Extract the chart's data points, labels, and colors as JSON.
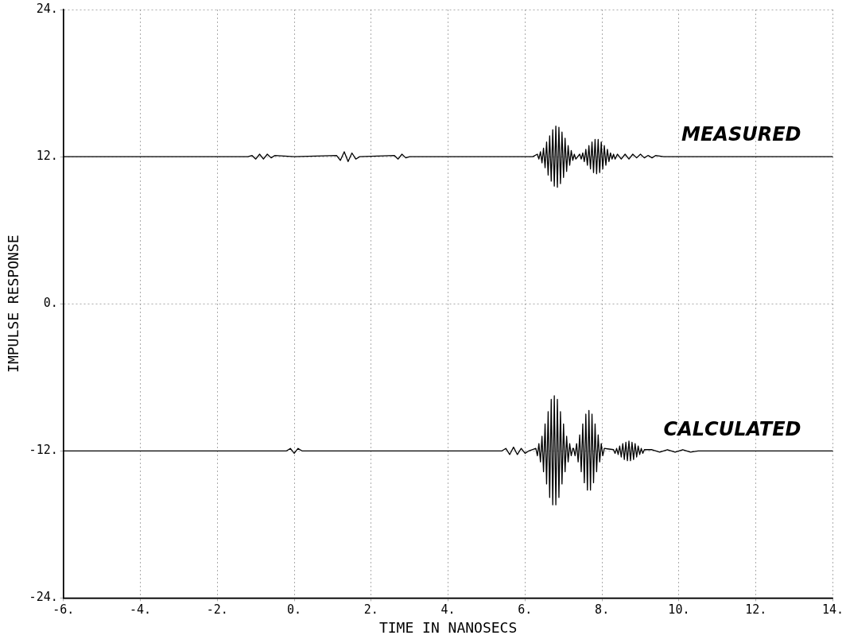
{
  "chart_data": {
    "type": "line",
    "xlabel": "TIME IN NANOSECS",
    "ylabel": "IMPULSE RESPONSE",
    "xlim": [
      -6,
      14
    ],
    "ylim": [
      -24,
      24
    ],
    "xticks": [
      {
        "value": -6,
        "label": "-6."
      },
      {
        "value": -4,
        "label": "-4."
      },
      {
        "value": -2,
        "label": "-2."
      },
      {
        "value": 0,
        "label": "0."
      },
      {
        "value": 2,
        "label": "2."
      },
      {
        "value": 4,
        "label": "4."
      },
      {
        "value": 6,
        "label": "6."
      },
      {
        "value": 8,
        "label": "8."
      },
      {
        "value": 10,
        "label": "10."
      },
      {
        "value": 12,
        "label": "12."
      },
      {
        "value": 14,
        "label": "14."
      }
    ],
    "yticks": [
      {
        "value": -24,
        "label": "-24."
      },
      {
        "value": -12,
        "label": "-12."
      },
      {
        "value": 0,
        "label": "0."
      },
      {
        "value": 12,
        "label": "12."
      },
      {
        "value": 24,
        "label": "24."
      }
    ],
    "grid": true,
    "legend": false,
    "marker": "none",
    "line_style": "solid",
    "series": [
      {
        "name": "MEASURED",
        "color": "#000000",
        "x": [
          -6,
          -1.2,
          -1.1,
          -1.0,
          -0.9,
          -0.8,
          -0.7,
          -0.6,
          -0.5,
          0.0,
          1.1,
          1.2,
          1.3,
          1.4,
          1.5,
          1.6,
          1.7,
          2.6,
          2.7,
          2.8,
          2.9,
          3.0,
          6.2,
          6.32,
          6.36,
          6.4,
          6.44,
          6.48,
          6.52,
          6.56,
          6.6,
          6.64,
          6.68,
          6.72,
          6.76,
          6.8,
          6.84,
          6.88,
          6.92,
          6.96,
          7.0,
          7.04,
          7.08,
          7.12,
          7.16,
          7.2,
          7.24,
          7.28,
          7.32,
          7.42,
          7.46,
          7.5,
          7.54,
          7.58,
          7.62,
          7.66,
          7.7,
          7.74,
          7.78,
          7.82,
          7.86,
          7.9,
          7.94,
          7.98,
          8.02,
          8.06,
          8.1,
          8.14,
          8.18,
          8.22,
          8.26,
          8.3,
          8.34,
          8.4,
          8.5,
          8.6,
          8.7,
          8.8,
          8.9,
          9.0,
          9.1,
          9.2,
          9.3,
          9.4,
          9.6,
          14
        ],
        "values": [
          12,
          12,
          12.1,
          11.8,
          12.2,
          11.8,
          12.2,
          11.9,
          12.1,
          12,
          12.1,
          11.7,
          12.4,
          11.6,
          12.3,
          11.8,
          12,
          12.1,
          11.8,
          12.2,
          11.9,
          12,
          12,
          12.2,
          11.8,
          12.4,
          11.5,
          12.7,
          11.1,
          13.2,
          10.5,
          13.7,
          10.0,
          14.2,
          9.6,
          14.5,
          9.5,
          14.4,
          9.8,
          14.0,
          10.3,
          13.5,
          10.8,
          12.9,
          11.3,
          12.5,
          11.7,
          12.2,
          11.8,
          12.2,
          11.8,
          12.3,
          11.6,
          12.6,
          11.3,
          12.9,
          11.0,
          13.2,
          10.7,
          13.4,
          10.6,
          13.4,
          10.7,
          13.2,
          11.0,
          12.9,
          11.3,
          12.6,
          11.6,
          12.3,
          11.8,
          12.2,
          11.8,
          12.2,
          11.8,
          12.2,
          11.8,
          12.2,
          11.9,
          12.2,
          11.9,
          12.1,
          11.9,
          12.1,
          12,
          12
        ]
      },
      {
        "name": "CALCULATED",
        "color": "#000000",
        "x": [
          -6,
          -0.2,
          -0.1,
          0,
          0.1,
          0.2,
          5.4,
          5.5,
          5.6,
          5.7,
          5.8,
          5.9,
          6.0,
          6.1,
          6.28,
          6.32,
          6.36,
          6.4,
          6.44,
          6.48,
          6.52,
          6.56,
          6.6,
          6.64,
          6.68,
          6.72,
          6.76,
          6.8,
          6.84,
          6.88,
          6.92,
          6.96,
          7.0,
          7.04,
          7.08,
          7.12,
          7.16,
          7.2,
          7.24,
          7.26,
          7.3,
          7.34,
          7.38,
          7.42,
          7.46,
          7.5,
          7.54,
          7.58,
          7.62,
          7.66,
          7.7,
          7.74,
          7.78,
          7.82,
          7.86,
          7.9,
          7.94,
          7.98,
          8.02,
          8.06,
          8.3,
          8.34,
          8.38,
          8.42,
          8.46,
          8.5,
          8.54,
          8.58,
          8.62,
          8.66,
          8.7,
          8.74,
          8.78,
          8.82,
          8.86,
          8.9,
          8.94,
          8.98,
          9.02,
          9.06,
          9.1,
          9.3,
          9.5,
          9.7,
          9.9,
          10.1,
          10.3,
          10.5,
          14
        ],
        "values": [
          -12,
          -12,
          -11.8,
          -12.2,
          -11.8,
          -12,
          -12,
          -11.8,
          -12.3,
          -11.7,
          -12.3,
          -11.8,
          -12.2,
          -12,
          -11.8,
          -12.4,
          -11.4,
          -12.9,
          -10.8,
          -13.7,
          -9.8,
          -14.7,
          -8.8,
          -15.8,
          -7.8,
          -16.4,
          -7.5,
          -16.4,
          -7.8,
          -15.8,
          -8.8,
          -14.7,
          -9.8,
          -13.7,
          -10.8,
          -12.9,
          -11.4,
          -12.4,
          -11.8,
          -11.8,
          -12.4,
          -11.4,
          -12.9,
          -10.7,
          -13.7,
          -9.8,
          -14.6,
          -9.0,
          -15.2,
          -8.7,
          -15.2,
          -9.0,
          -14.6,
          -9.8,
          -13.7,
          -10.7,
          -12.9,
          -11.4,
          -12.4,
          -11.8,
          -11.9,
          -12.2,
          -11.8,
          -12.3,
          -11.6,
          -12.5,
          -11.4,
          -12.7,
          -11.3,
          -12.8,
          -11.2,
          -12.8,
          -11.3,
          -12.7,
          -11.4,
          -12.5,
          -11.6,
          -12.3,
          -11.8,
          -12.2,
          -11.9,
          -11.9,
          -12.1,
          -11.9,
          -12.1,
          -11.9,
          -12.1,
          -12,
          -12
        ]
      }
    ]
  }
}
